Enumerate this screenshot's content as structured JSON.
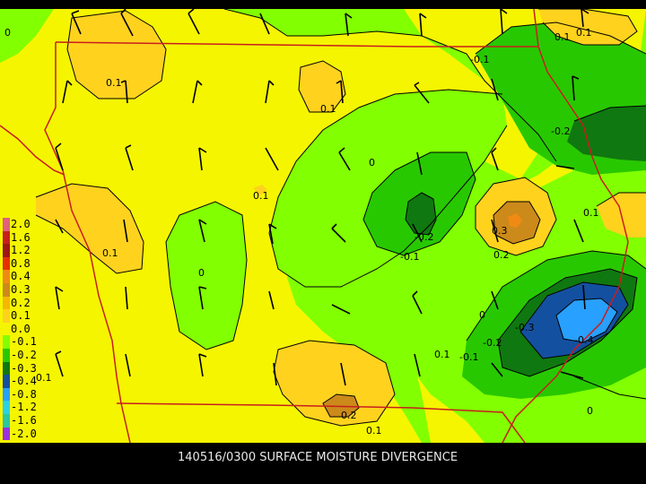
{
  "caption": "140516/0300 SURFACE MOISTURE DIVERGENCE",
  "legend": [
    {
      "label": "2.0",
      "color": "#e0607e"
    },
    {
      "label": "1.6",
      "color": "#c81e1e"
    },
    {
      "label": "1.2",
      "color": "#a01414"
    },
    {
      "label": "0.8",
      "color": "#e62e00"
    },
    {
      "label": "0.4",
      "color": "#f08a14"
    },
    {
      "label": "0.3",
      "color": "#cc8a1a"
    },
    {
      "label": "0.2",
      "color": "#f5b800"
    },
    {
      "label": "0.1",
      "color": "#ffd21e"
    },
    {
      "label": "0.0",
      "color": "#f5f500"
    },
    {
      "label": "-0.1",
      "color": "#82ff00"
    },
    {
      "label": "-0.2",
      "color": "#28c800"
    },
    {
      "label": "-0.3",
      "color": "#107810"
    },
    {
      "label": "-0.4",
      "color": "#1450a0"
    },
    {
      "label": "-0.8",
      "color": "#28a0ff"
    },
    {
      "label": "-1.2",
      "color": "#28d2e6"
    },
    {
      "label": "-1.6",
      "color": "#28c8a0"
    },
    {
      "label": "-2.0",
      "color": "#9b30e0"
    }
  ],
  "contour_labels": [
    "0",
    "0.1",
    "-0.1",
    "0.1",
    "0.1",
    "0.1",
    "-0.2",
    "0.1",
    "0",
    "0.1",
    "-0.2",
    "0.3",
    "-0.1",
    "0.2",
    "0.1",
    "0",
    "0",
    "-0.3",
    "-0.2",
    "-0.4",
    "0.1",
    "-0.1",
    "0.1",
    "0.2",
    "0.1",
    "0"
  ],
  "colors": {
    "background": "#000000",
    "state_border": "#c81e1e",
    "contour": "#000000",
    "wind_barb": "#000000"
  }
}
